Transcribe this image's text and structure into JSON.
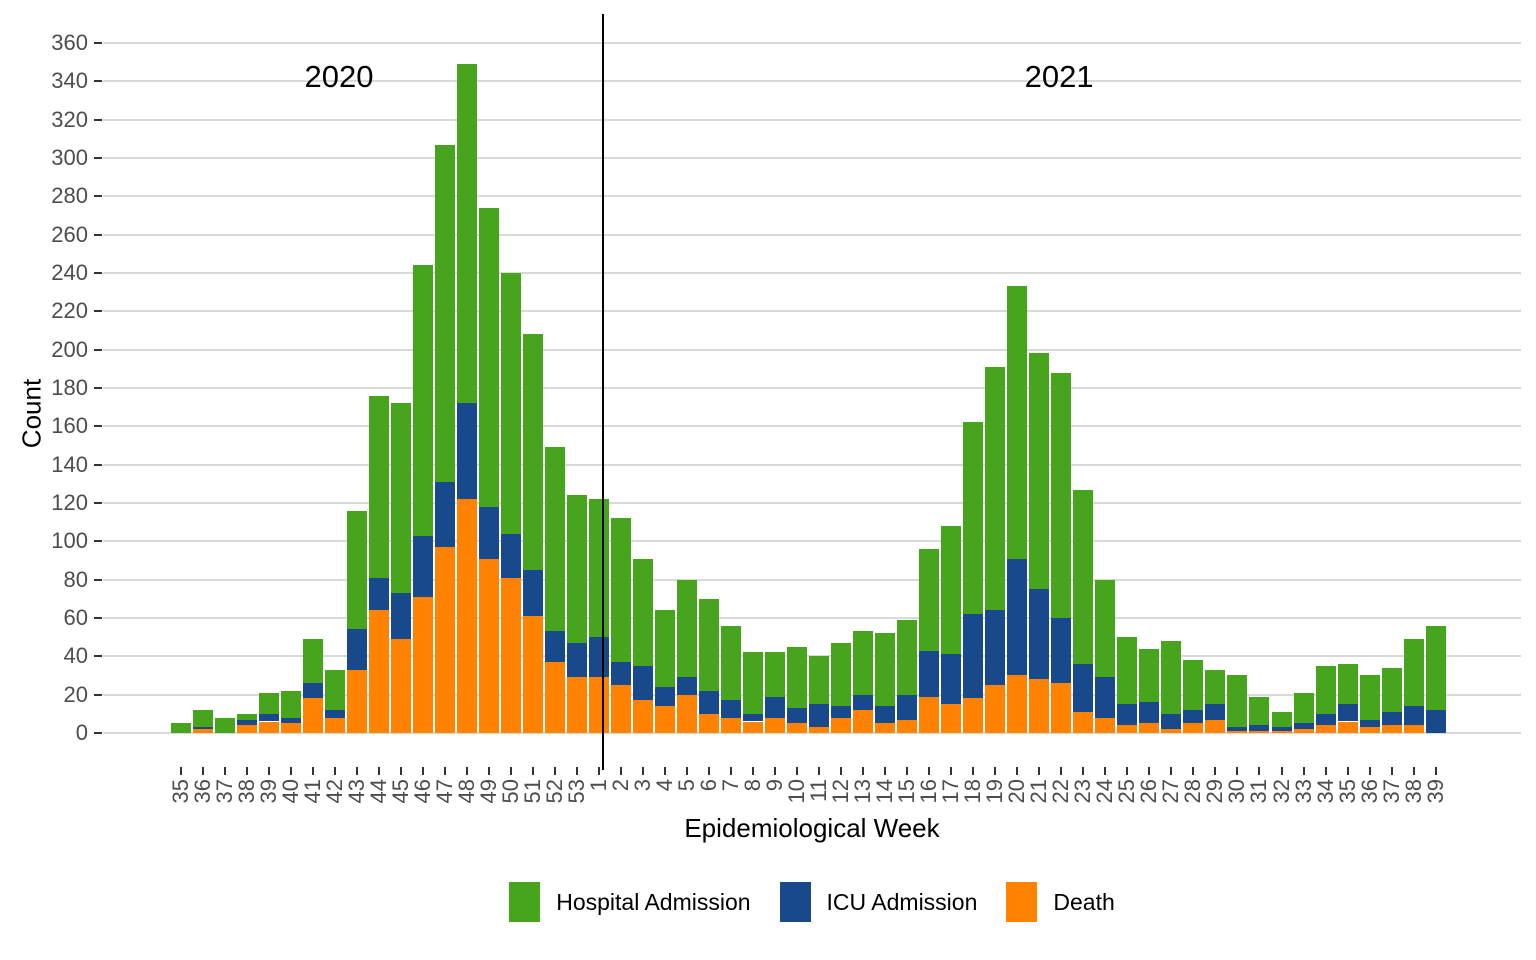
{
  "chart_data": {
    "type": "bar",
    "stacked": true,
    "orientation": "vertical",
    "title": "",
    "xlabel": "Epidemiological Week",
    "ylabel": "Count",
    "ylim": [
      0,
      360
    ],
    "yticks": [
      0,
      20,
      40,
      60,
      80,
      100,
      120,
      140,
      160,
      180,
      200,
      220,
      240,
      260,
      280,
      300,
      320,
      340,
      360
    ],
    "grid": "horizontal-major",
    "gridline_color": "#d9d9d9",
    "axis_text_color": "#4d4d4d",
    "legend_position": "bottom",
    "year_groups": [
      {
        "label": "2020",
        "n_weeks": 19
      },
      {
        "label": "2021",
        "n_weeks": 39
      }
    ],
    "categories": [
      "35",
      "36",
      "37",
      "38",
      "39",
      "40",
      "41",
      "42",
      "43",
      "44",
      "45",
      "46",
      "47",
      "48",
      "49",
      "50",
      "51",
      "52",
      "53",
      "1",
      "2",
      "3",
      "4",
      "5",
      "6",
      "7",
      "8",
      "9",
      "10",
      "11",
      "12",
      "13",
      "14",
      "15",
      "16",
      "17",
      "18",
      "19",
      "20",
      "21",
      "22",
      "23",
      "24",
      "25",
      "26",
      "27",
      "28",
      "29",
      "30",
      "31",
      "32",
      "33",
      "34",
      "35",
      "36",
      "37",
      "38",
      "39"
    ],
    "series": [
      {
        "name": "Death",
        "color": "#ff8300",
        "values": [
          0,
          2,
          0,
          4,
          6,
          5,
          18,
          8,
          33,
          64,
          49,
          71,
          97,
          122,
          91,
          81,
          61,
          37,
          29,
          29,
          25,
          17,
          14,
          20,
          10,
          8,
          6,
          8,
          5,
          3,
          8,
          12,
          5,
          7,
          19,
          15,
          18,
          25,
          30,
          28,
          26,
          11,
          8,
          4,
          5,
          2,
          5,
          7,
          1,
          1,
          1,
          2,
          4,
          6,
          3,
          4,
          4,
          0
        ]
      },
      {
        "name": "ICU Admission",
        "color": "#17498c",
        "values": [
          0,
          1,
          0,
          3,
          4,
          3,
          8,
          4,
          21,
          17,
          24,
          32,
          34,
          50,
          27,
          23,
          24,
          16,
          18,
          21,
          12,
          18,
          10,
          9,
          12,
          9,
          4,
          11,
          8,
          12,
          6,
          8,
          9,
          13,
          24,
          26,
          44,
          39,
          61,
          47,
          34,
          25,
          21,
          11,
          11,
          8,
          7,
          8,
          2,
          3,
          2,
          3,
          6,
          9,
          4,
          7,
          10,
          12
        ]
      },
      {
        "name": "Hospital Admission",
        "color": "#46a51c",
        "values": [
          5,
          9,
          8,
          3,
          11,
          14,
          23,
          21,
          62,
          95,
          99,
          141,
          176,
          177,
          156,
          136,
          123,
          96,
          77,
          72,
          75,
          56,
          40,
          51,
          48,
          39,
          32,
          23,
          32,
          25,
          33,
          33,
          38,
          39,
          53,
          67,
          100,
          127,
          142,
          123,
          128,
          91,
          51,
          35,
          28,
          38,
          26,
          18,
          27,
          15,
          8,
          16,
          25,
          21,
          23,
          23,
          35,
          44
        ]
      }
    ],
    "annotations": [
      {
        "text": "2020",
        "x_index": 7.2,
        "y_value": 342
      },
      {
        "text": "2021",
        "x_index": 39.9,
        "y_value": 342
      }
    ],
    "year_divider": {
      "between": [
        "53",
        "1"
      ],
      "x_index": 19.2,
      "color": "#000000"
    },
    "legend": {
      "items": [
        {
          "label": "Hospital Admission",
          "color": "#46a51c"
        },
        {
          "label": "ICU Admission",
          "color": "#17498c"
        },
        {
          "label": "Death",
          "color": "#ff8300"
        }
      ]
    }
  }
}
